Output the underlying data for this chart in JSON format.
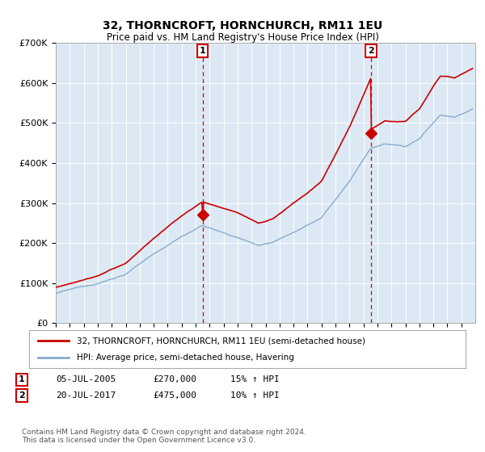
{
  "title": "32, THORNCROFT, HORNCHURCH, RM11 1EU",
  "subtitle": "Price paid vs. HM Land Registry's House Price Index (HPI)",
  "plot_bg_color": "#dce9f5",
  "ylim": [
    0,
    700000
  ],
  "yticks": [
    0,
    100000,
    200000,
    300000,
    400000,
    500000,
    600000,
    700000
  ],
  "ytick_labels": [
    "£0",
    "£100K",
    "£200K",
    "£300K",
    "£400K",
    "£500K",
    "£600K",
    "£700K"
  ],
  "sale1": {
    "date_num": 2005.51,
    "price": 270000,
    "label": "1",
    "date_str": "05-JUL-2005",
    "pct": "15%",
    "dir": "↑"
  },
  "sale2": {
    "date_num": 2017.55,
    "price": 475000,
    "label": "2",
    "date_str": "20-JUL-2017",
    "pct": "10%",
    "dir": "↑"
  },
  "line1_color": "#cc0000",
  "line2_color": "#88aacc",
  "legend1": "32, THORNCROFT, HORNCHURCH, RM11 1EU (semi-detached house)",
  "legend2": "HPI: Average price, semi-detached house, Havering",
  "footnote": "Contains HM Land Registry data © Crown copyright and database right 2024.\nThis data is licensed under the Open Government Licence v3.0.",
  "xmin": 1995,
  "xmax": 2025
}
